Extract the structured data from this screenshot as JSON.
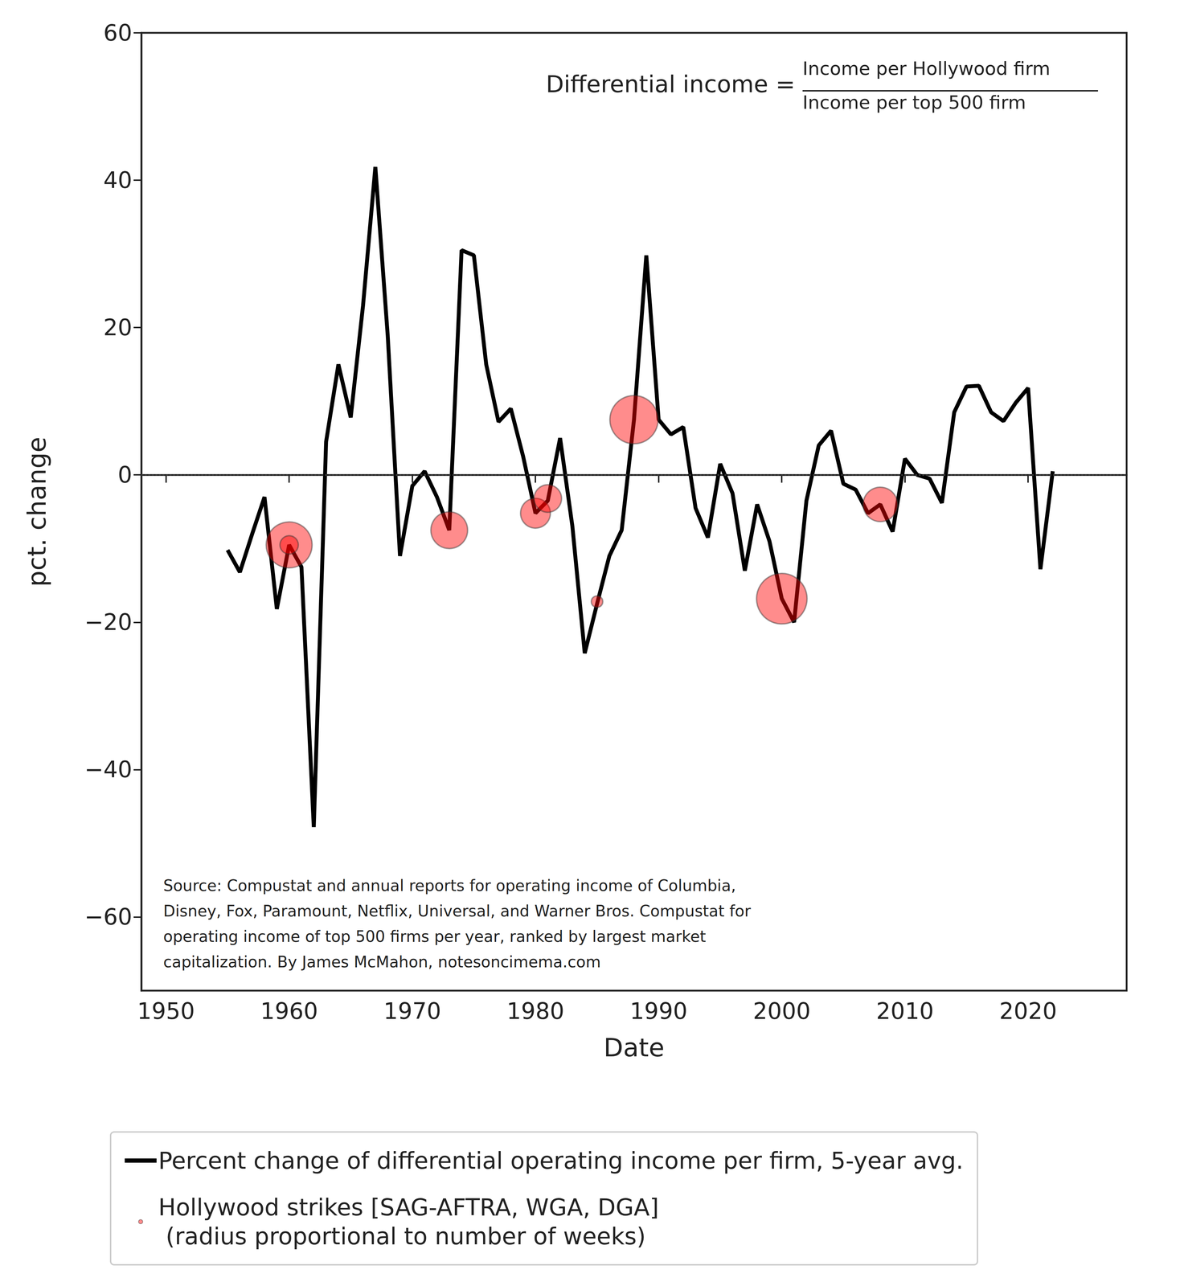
{
  "chart_data": {
    "type": "line",
    "annotations": {
      "formula_left": "Differential income =",
      "formula_numerator": "Income per Hollywood firm",
      "formula_denominator": "Income per top 500 firm",
      "source": [
        "Source: Compustat and annual reports for operating income of Columbia,",
        "Disney, Fox, Paramount, Netflix, Universal, and Warner Bros. Compustat for",
        "operating income of top 500 firms per year, ranked by largest market",
        "capitalization. By James McMahon, notesoncimema.com"
      ]
    },
    "x_label": "Date",
    "y_label": "pct. change",
    "x": [
      1955,
      1956,
      1957,
      1958,
      1959,
      1960,
      1961,
      1962,
      1963,
      1964,
      1965,
      1966,
      1967,
      1968,
      1969,
      1970,
      1971,
      1972,
      1973,
      1974,
      1975,
      1976,
      1977,
      1978,
      1979,
      1980,
      1981,
      1982,
      1983,
      1984,
      1985,
      1986,
      1987,
      1988,
      1989,
      1990,
      1991,
      1992,
      1993,
      1994,
      1995,
      1996,
      1997,
      1998,
      1999,
      2000,
      2001,
      2002,
      2003,
      2004,
      2005,
      2006,
      2007,
      2008,
      2009,
      2010,
      2011,
      2012,
      2013,
      2014,
      2015,
      2016,
      2017,
      2018,
      2019,
      2020,
      2021,
      2022
    ],
    "series": [
      {
        "name": "Percent change of differential operating income per firm, 5-year avg.",
        "type": "line",
        "color": "#000000",
        "values": [
          -10.2,
          -13.2,
          -8,
          -3,
          -18.2,
          -9.5,
          -12.5,
          -47.8,
          4.5,
          15,
          7.8,
          23,
          41.8,
          19,
          -11,
          -1.5,
          0.5,
          -3,
          -7.5,
          30.5,
          29.8,
          15,
          7.2,
          9,
          2.5,
          -5.2,
          -3.5,
          5,
          -7,
          -24.2,
          -17.5,
          -11,
          -7.5,
          7.5,
          29.8,
          7.5,
          5.5,
          6.5,
          -4.5,
          -8.5,
          1.5,
          -2.5,
          -13,
          -4,
          -9,
          -16.8,
          -20,
          -3.5,
          4,
          6,
          -1.2,
          -2,
          -5.2,
          -4,
          -7.7,
          2.2,
          0,
          -0.5,
          -3.8,
          8.5,
          12,
          12.1,
          8.5,
          7.3,
          9.8,
          11.8,
          -12.8,
          0.5
        ]
      },
      {
        "name": "Hollywood strikes [SAG-AFTRA, WGA, DGA]\n (radius proportional to number of weeks)",
        "type": "scatter",
        "color": "#ff0000",
        "marker": "circle",
        "x": [
          1960,
          1960,
          1973,
          1980,
          1981,
          1985,
          1988,
          2000,
          2008
        ],
        "values": [
          -9.5,
          -9.5,
          -7.5,
          -5.2,
          -3.2,
          -17.2,
          7.5,
          -16.8,
          -4
        ],
        "weeks": [
          20,
          8,
          16,
          13,
          12,
          5,
          21,
          22,
          15
        ]
      }
    ],
    "xlim": [
      1948,
      2028
    ],
    "xticks": [
      1950,
      1960,
      1970,
      1980,
      1990,
      2000,
      2010,
      2020
    ],
    "ylim": [
      -70,
      60
    ],
    "yticks": [
      {
        "value": -60,
        "label": "−60"
      },
      {
        "value": -40,
        "label": "−40"
      },
      {
        "value": -20,
        "label": "−20"
      },
      0,
      20,
      40,
      60
    ],
    "hline": 0,
    "legend": "bottom",
    "grid": false
  }
}
